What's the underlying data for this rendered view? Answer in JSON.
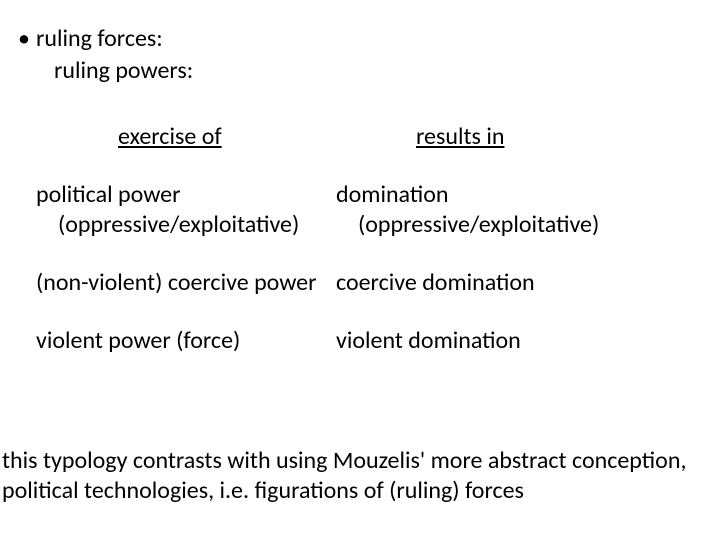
{
  "bullet": {
    "glyph": "•",
    "line1": "ruling forces:",
    "line2": "ruling powers:"
  },
  "headers": {
    "left": "exercise of",
    "right": "results in"
  },
  "rows": [
    {
      "left_main": "political power",
      "left_sub": "(oppressive/exploitative)",
      "right_main": "domination",
      "right_sub": "(oppressive/exploitative)"
    },
    {
      "left_main": "(non-violent) coercive power",
      "left_sub": "",
      "right_main": "coercive domination",
      "right_sub": ""
    },
    {
      "left_main": "violent power (force)",
      "left_sub": "",
      "right_main": "violent domination",
      "right_sub": ""
    }
  ],
  "closing": "this typology contrasts with using Mouzelis' more abstract conception, political technologies, i.e. figurations of (ruling) forces"
}
